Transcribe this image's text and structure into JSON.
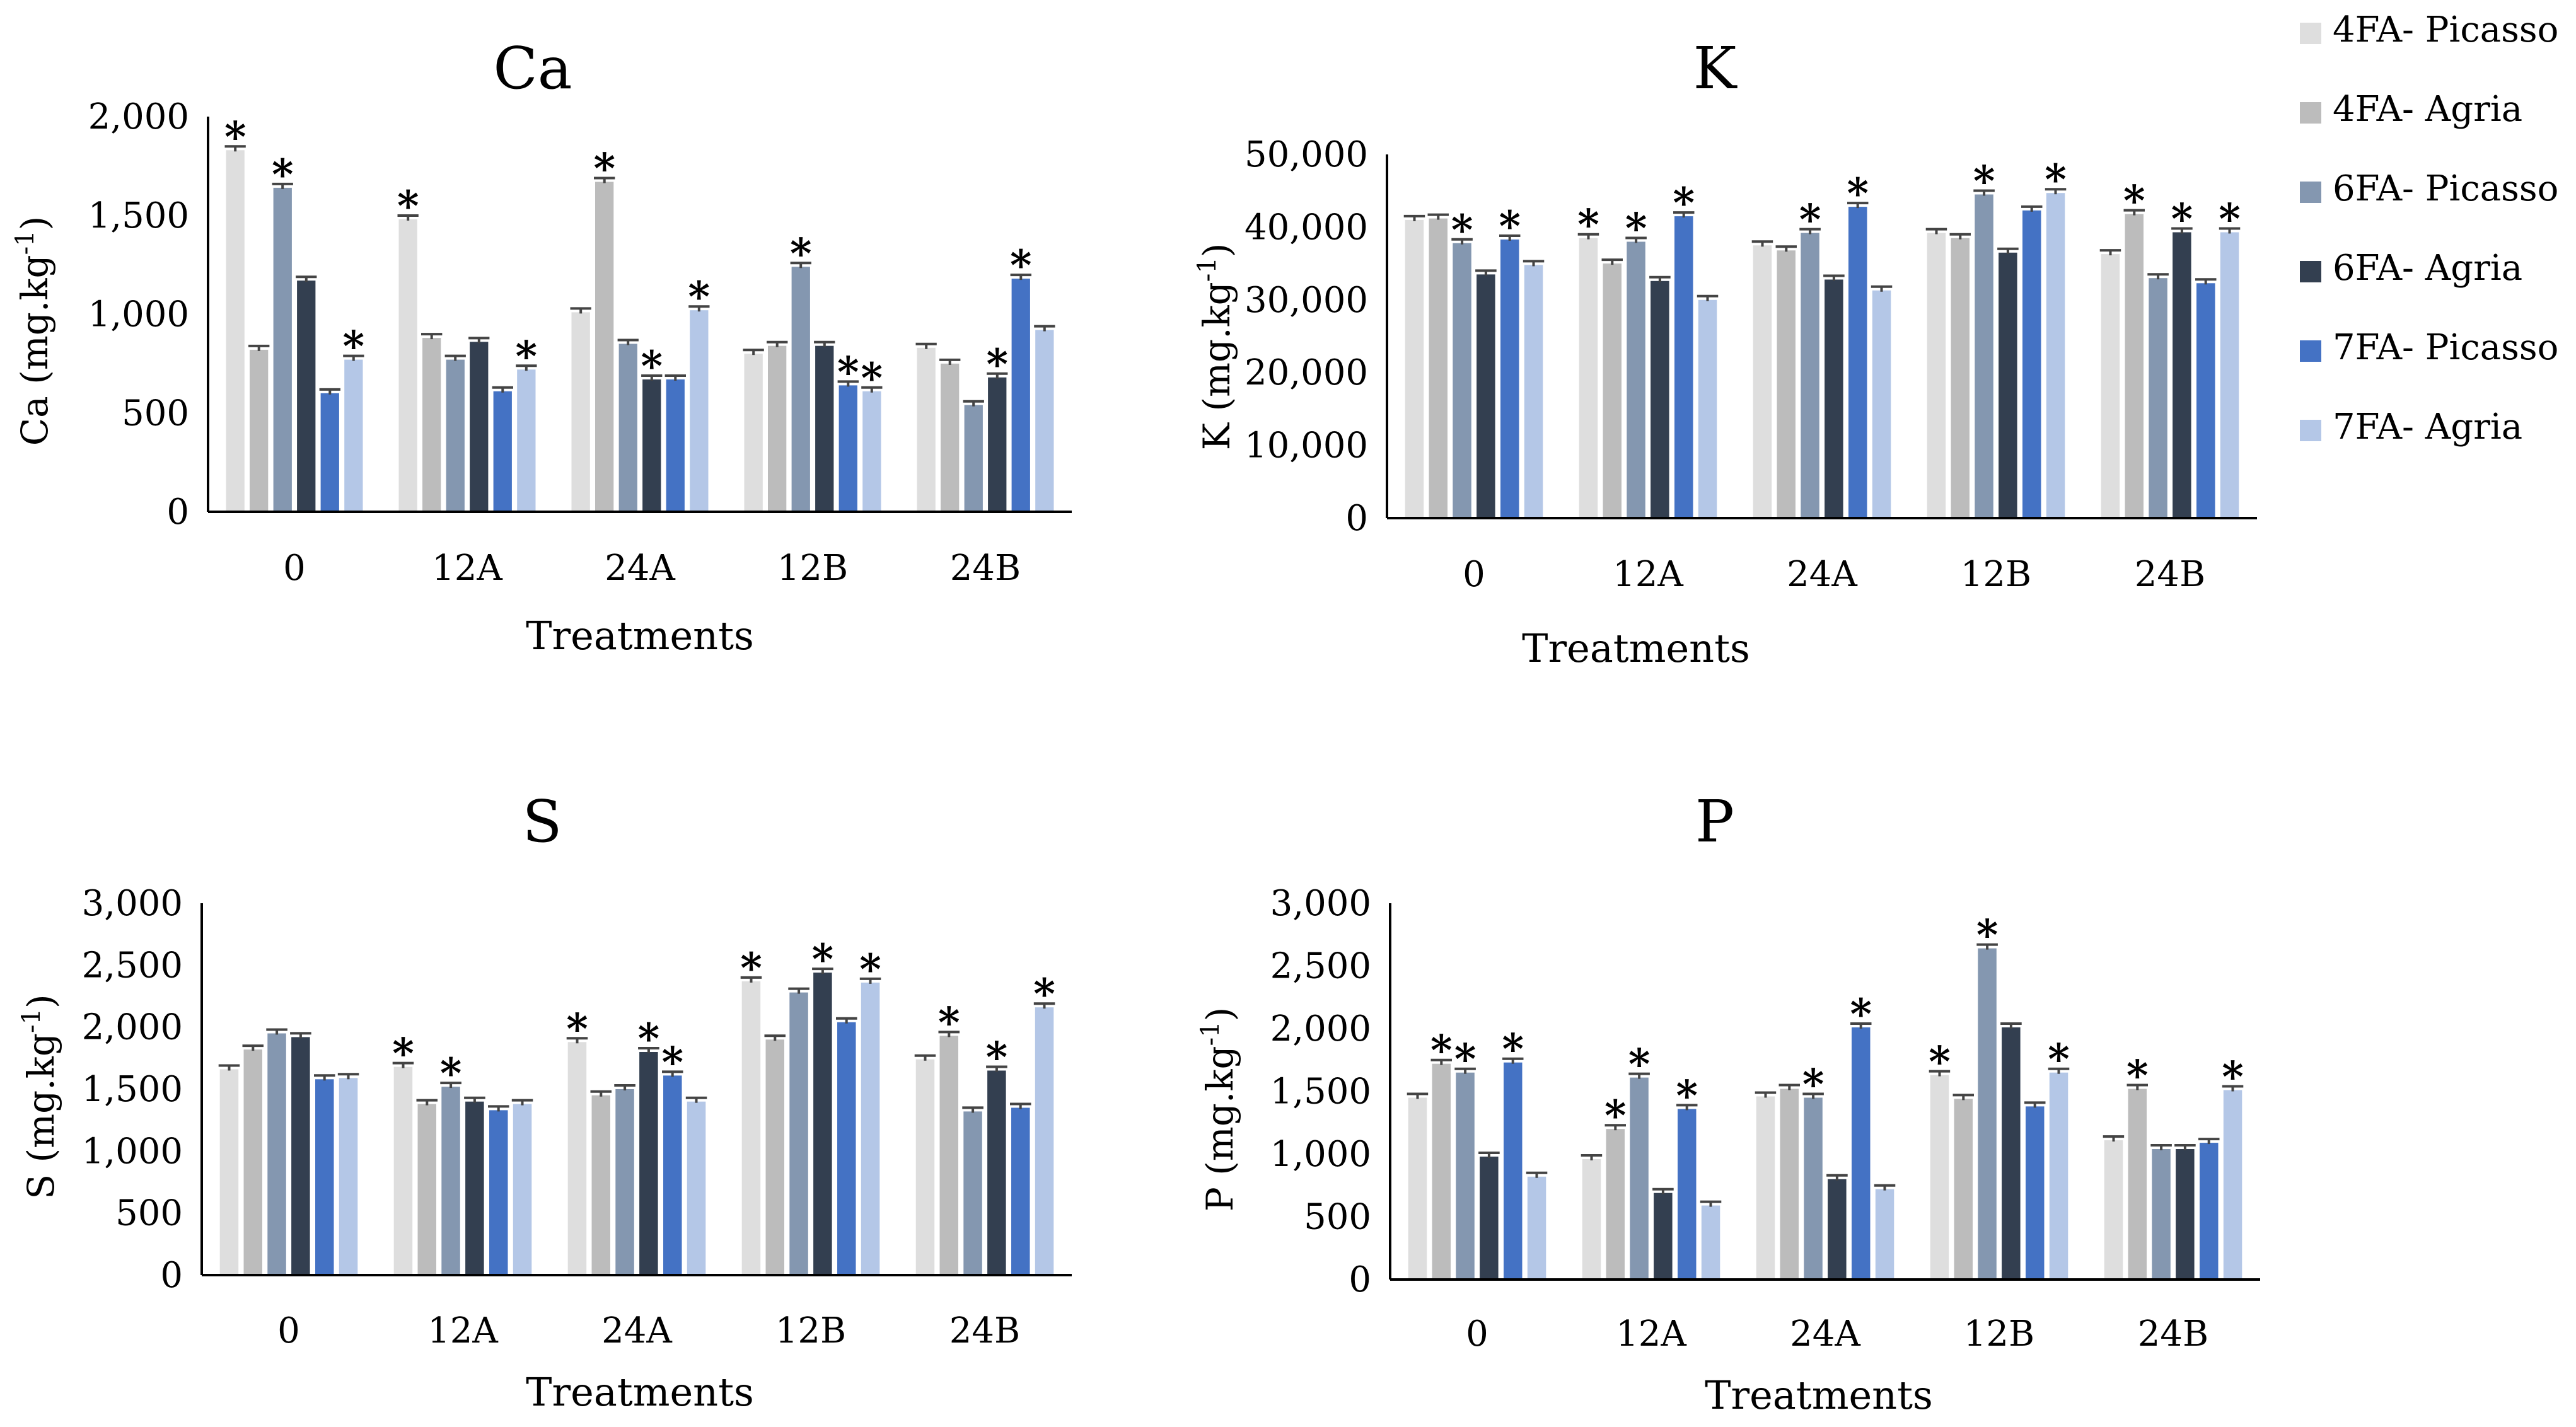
{
  "legend": [
    {
      "name": "4FA- Picasso",
      "color": "#dedede"
    },
    {
      "name": "4FA- Agria",
      "color": "#bcbcbc"
    },
    {
      "name": "6FA- Picasso",
      "color": "#8497b0"
    },
    {
      "name": "6FA- Agria",
      "color": "#333f50"
    },
    {
      "name": "7FA- Picasso",
      "color": "#4472c4"
    },
    {
      "name": "7FA- Agria",
      "color": "#b4c7e7"
    }
  ],
  "chart_data": [
    {
      "type": "bar",
      "title": "Ca",
      "xlabel": "Treatments",
      "ylabel_main": "Ca (mg.kg",
      "ylabel_sup": "-1",
      "ylabel_end": ")",
      "ylim": [
        0,
        2000
      ],
      "yticks": [
        0,
        500,
        1000,
        1500,
        2000
      ],
      "ytick_labels": [
        "0",
        "500",
        "1,000",
        "1,500",
        "2,000"
      ],
      "categories": [
        "0",
        "12A",
        "24A",
        "12B",
        "24B"
      ],
      "series": [
        {
          "name": "4FA- Picasso",
          "values": [
            1830,
            1480,
            1010,
            800,
            830
          ],
          "star": [
            true,
            true,
            false,
            false,
            false
          ]
        },
        {
          "name": "4FA- Agria",
          "values": [
            820,
            880,
            1670,
            840,
            750
          ],
          "star": [
            false,
            false,
            true,
            false,
            false
          ]
        },
        {
          "name": "6FA- Picasso",
          "values": [
            1640,
            770,
            850,
            1240,
            540
          ],
          "star": [
            true,
            false,
            false,
            true,
            false
          ]
        },
        {
          "name": "6FA- Agria",
          "values": [
            1170,
            860,
            670,
            840,
            680
          ],
          "star": [
            false,
            false,
            true,
            false,
            true
          ]
        },
        {
          "name": "7FA- Picasso",
          "values": [
            600,
            610,
            670,
            640,
            1180
          ],
          "star": [
            false,
            false,
            false,
            true,
            true
          ]
        },
        {
          "name": "7FA- Agria",
          "values": [
            770,
            720,
            1020,
            610,
            920
          ],
          "star": [
            true,
            true,
            true,
            true,
            false
          ]
        }
      ]
    },
    {
      "type": "bar",
      "title": "K",
      "xlabel": "Treatments",
      "ylabel_main": "K (mg.kg",
      "ylabel_sup": "-1",
      "ylabel_end": ")",
      "ylim": [
        0,
        50000
      ],
      "yticks": [
        0,
        10000,
        20000,
        30000,
        40000,
        50000
      ],
      "ytick_labels": [
        "0",
        "10,000",
        "20,000",
        "30,000",
        "40,000",
        "50,000"
      ],
      "categories": [
        "0",
        "12A",
        "24A",
        "12B",
        "24B"
      ],
      "series": [
        {
          "name": "4FA- Picasso",
          "values": [
            41000,
            38500,
            37500,
            39200,
            36300
          ],
          "star": [
            false,
            true,
            false,
            false,
            false
          ]
        },
        {
          "name": "4FA- Agria",
          "values": [
            41200,
            35000,
            36800,
            38500,
            41800
          ],
          "star": [
            false,
            false,
            false,
            false,
            true
          ]
        },
        {
          "name": "6FA- Picasso",
          "values": [
            37800,
            38000,
            39200,
            44500,
            33000
          ],
          "star": [
            true,
            true,
            true,
            true,
            false
          ]
        },
        {
          "name": "6FA- Agria",
          "values": [
            33500,
            32600,
            32800,
            36500,
            39300
          ],
          "star": [
            false,
            false,
            false,
            false,
            true
          ]
        },
        {
          "name": "7FA- Picasso",
          "values": [
            38300,
            41500,
            42800,
            42300,
            32300
          ],
          "star": [
            true,
            true,
            true,
            false,
            false
          ]
        },
        {
          "name": "7FA- Agria",
          "values": [
            34800,
            30000,
            31300,
            44700,
            39300
          ],
          "star": [
            false,
            false,
            false,
            true,
            true
          ]
        }
      ]
    },
    {
      "type": "bar",
      "title": "S",
      "xlabel": "Treatments",
      "ylabel_main": "S (mg.kg",
      "ylabel_sup": "-1",
      "ylabel_end": ")",
      "ylim": [
        0,
        3000
      ],
      "yticks": [
        0,
        500,
        1000,
        1500,
        2000,
        2500,
        3000
      ],
      "ytick_labels": [
        "0",
        "500",
        "1,000",
        "1,500",
        "2,000",
        "2,500",
        "3,000"
      ],
      "categories": [
        "0",
        "12A",
        "24A",
        "12B",
        "24B"
      ],
      "series": [
        {
          "name": "4FA- Picasso",
          "values": [
            1660,
            1680,
            1880,
            2370,
            1740
          ],
          "star": [
            false,
            true,
            true,
            true,
            false
          ]
        },
        {
          "name": "4FA- Agria",
          "values": [
            1820,
            1380,
            1450,
            1900,
            1930
          ],
          "star": [
            false,
            false,
            false,
            false,
            true
          ]
        },
        {
          "name": "6FA- Picasso",
          "values": [
            1950,
            1520,
            1500,
            2280,
            1320
          ],
          "star": [
            false,
            true,
            false,
            false,
            false
          ]
        },
        {
          "name": "6FA- Agria",
          "values": [
            1920,
            1400,
            1800,
            2440,
            1650
          ],
          "star": [
            false,
            false,
            true,
            true,
            true
          ]
        },
        {
          "name": "7FA- Picasso",
          "values": [
            1580,
            1330,
            1610,
            2040,
            1350
          ],
          "star": [
            false,
            false,
            true,
            false,
            false
          ]
        },
        {
          "name": "7FA- Agria",
          "values": [
            1590,
            1380,
            1400,
            2360,
            2160
          ],
          "star": [
            false,
            false,
            false,
            true,
            true
          ]
        }
      ]
    },
    {
      "type": "bar",
      "title": "P",
      "xlabel": "Treatments",
      "ylabel_main": "P (mg.kg",
      "ylabel_sup": "-1",
      "ylabel_end": ")",
      "ylim": [
        0,
        3000
      ],
      "yticks": [
        0,
        500,
        1000,
        1500,
        2000,
        2500,
        3000
      ],
      "ytick_labels": [
        "0",
        "500",
        "1,000",
        "1,500",
        "2,000",
        "2,500",
        "3,000"
      ],
      "categories": [
        "0",
        "12A",
        "24A",
        "12B",
        "24B"
      ],
      "series": [
        {
          "name": "4FA- Picasso",
          "values": [
            1450,
            960,
            1460,
            1630,
            1110
          ],
          "star": [
            false,
            false,
            false,
            true,
            false
          ]
        },
        {
          "name": "4FA- Agria",
          "values": [
            1720,
            1200,
            1520,
            1440,
            1520
          ],
          "star": [
            true,
            true,
            false,
            false,
            true
          ]
        },
        {
          "name": "6FA- Picasso",
          "values": [
            1650,
            1610,
            1450,
            2640,
            1040
          ],
          "star": [
            true,
            true,
            true,
            true,
            false
          ]
        },
        {
          "name": "6FA- Agria",
          "values": [
            980,
            690,
            800,
            2010,
            1040
          ],
          "star": [
            false,
            false,
            false,
            false,
            false
          ]
        },
        {
          "name": "7FA- Picasso",
          "values": [
            1730,
            1360,
            2010,
            1380,
            1090
          ],
          "star": [
            true,
            true,
            true,
            false,
            false
          ]
        },
        {
          "name": "7FA- Agria",
          "values": [
            820,
            590,
            720,
            1650,
            1510
          ],
          "star": [
            false,
            false,
            false,
            true,
            true
          ]
        }
      ]
    }
  ]
}
